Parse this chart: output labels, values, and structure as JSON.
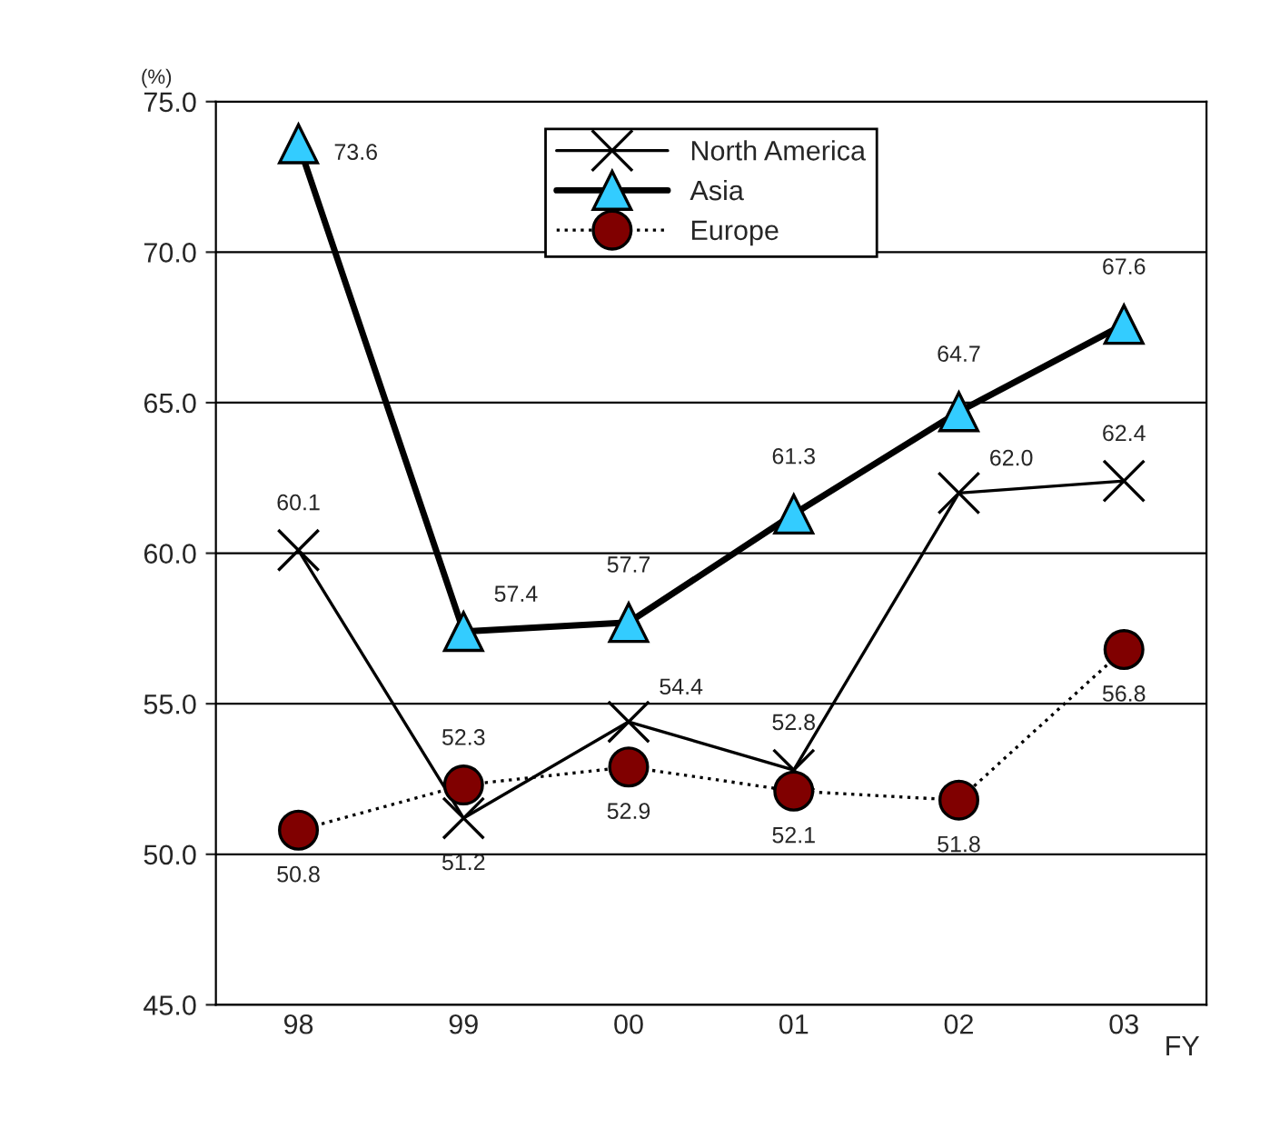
{
  "chart_data": {
    "type": "line",
    "ylabel": "(%)",
    "xlabel": "FY",
    "categories": [
      "98",
      "99",
      "00",
      "01",
      "02",
      "03"
    ],
    "series": [
      {
        "name": "North America",
        "color": "#000000",
        "marker": "cross",
        "line_style": "solid",
        "values": [
          60.1,
          51.2,
          54.4,
          52.8,
          62.0,
          62.4
        ],
        "value_labels": [
          "60.1",
          "51.2",
          "54.4",
          "52.8",
          "62.0",
          "62.4"
        ]
      },
      {
        "name": "Asia",
        "color": "#33ccff",
        "marker": "triangle",
        "line_style": "solid",
        "values": [
          73.6,
          57.4,
          57.7,
          61.3,
          64.7,
          67.6
        ],
        "value_labels": [
          "73.6",
          "57.4",
          "57.7",
          "61.3",
          "64.7",
          "67.6"
        ]
      },
      {
        "name": "Europe",
        "color": "#800000",
        "marker": "circle",
        "line_style": "dotted",
        "values": [
          50.8,
          52.3,
          52.9,
          52.1,
          51.8,
          56.8
        ],
        "value_labels": [
          "50.8",
          "52.3",
          "52.9",
          "52.1",
          "51.8",
          "56.8"
        ]
      }
    ],
    "ylim": [
      45,
      75
    ],
    "yticks": [
      {
        "value": 45,
        "label": "45.0"
      },
      {
        "value": 50,
        "label": "50.0"
      },
      {
        "value": 55,
        "label": "55.0"
      },
      {
        "value": 60,
        "label": "60.0"
      },
      {
        "value": 65,
        "label": "65.0"
      },
      {
        "value": 70,
        "label": "70.0"
      },
      {
        "value": 75,
        "label": "75.0"
      }
    ],
    "grid": "y",
    "legend": "top"
  }
}
